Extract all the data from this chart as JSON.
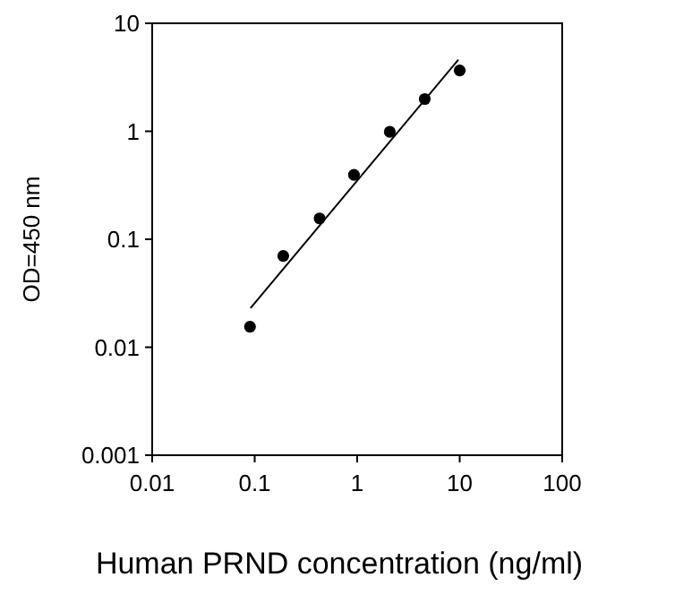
{
  "chart_data": {
    "type": "scatter",
    "xlabel": "Human PRND concentration (ng/ml)",
    "ylabel": "OD=450 nm",
    "log": "xy",
    "xlim": [
      0.01,
      100
    ],
    "ylim": [
      0.001,
      10
    ],
    "xticks": [
      0.01,
      0.1,
      1,
      10,
      100
    ],
    "yticks": [
      0.001,
      0.01,
      0.1,
      1,
      10
    ],
    "grid": false,
    "marker": "circle",
    "series": [
      {
        "type": "scatter",
        "color": "#000000",
        "x": [
          0.09,
          0.19,
          0.43,
          0.93,
          2.08,
          4.56,
          10
        ],
        "values": [
          0.0155,
          0.07,
          0.156,
          0.395,
          0.99,
          1.99,
          3.66
        ]
      },
      {
        "type": "line",
        "color": "#000000",
        "x": [
          0.091,
          9.7
        ],
        "values": [
          0.023,
          4.6
        ],
        "line_style": "solid",
        "marker": "none"
      }
    ]
  }
}
